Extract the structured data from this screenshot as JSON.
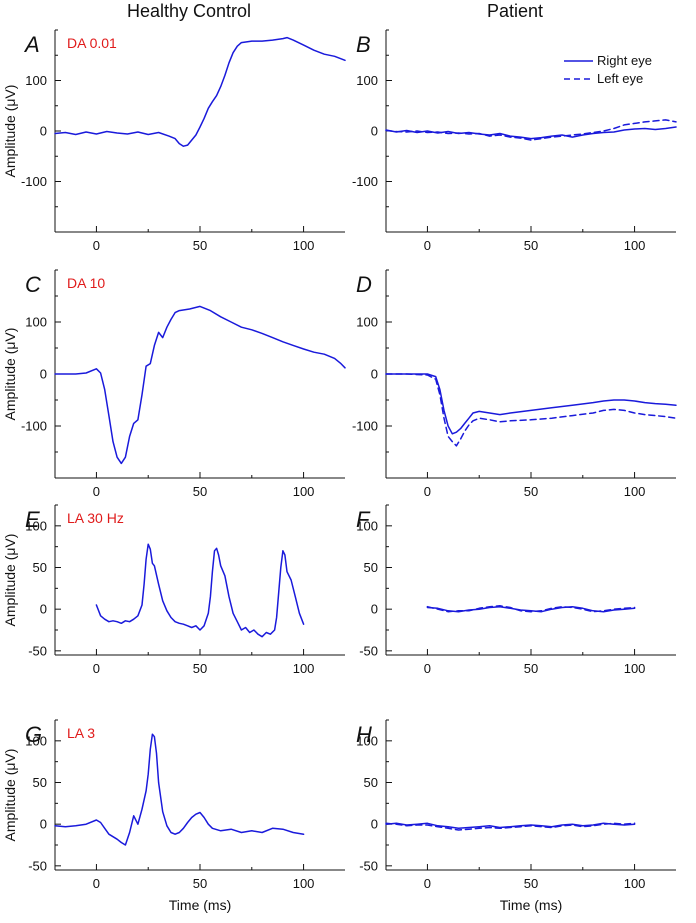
{
  "column_titles": [
    "Healthy Control",
    "Patient"
  ],
  "legend": {
    "right_eye": "Right eye",
    "left_eye": "Left eye"
  },
  "colors": {
    "trace": "#1a1adb",
    "condition_label": "#e01b1b",
    "axis": "#111111"
  },
  "chart_data": [
    {
      "id": "A",
      "type": "line",
      "condition": "DA 0.01",
      "column": "Healthy Control",
      "xlim": [
        -20,
        120
      ],
      "ylim": [
        -200,
        200
      ],
      "xticks": [
        0,
        50,
        100
      ],
      "yticks": [
        -100,
        0,
        100
      ],
      "ylabel": "Amplitude (μV)",
      "xlabel": "",
      "series": [
        {
          "name": "Healthy Control",
          "style": "solid",
          "x": [
            -20,
            -15,
            -10,
            -5,
            0,
            5,
            10,
            15,
            20,
            25,
            30,
            35,
            38,
            40,
            42,
            44,
            46,
            48,
            50,
            52,
            54,
            56,
            58,
            60,
            62,
            64,
            66,
            68,
            70,
            75,
            80,
            85,
            90,
            92,
            95,
            100,
            105,
            110,
            115,
            120
          ],
          "y": [
            -5,
            -3,
            -7,
            -2,
            -6,
            -1,
            -4,
            -6,
            -2,
            -7,
            -3,
            -10,
            -15,
            -25,
            -30,
            -28,
            -18,
            -8,
            8,
            25,
            45,
            58,
            70,
            88,
            110,
            135,
            155,
            168,
            175,
            178,
            178,
            180,
            183,
            185,
            180,
            170,
            160,
            152,
            148,
            140
          ]
        }
      ]
    },
    {
      "id": "B",
      "type": "line",
      "condition": "",
      "column": "Patient",
      "xlim": [
        -20,
        120
      ],
      "ylim": [
        -200,
        200
      ],
      "xticks": [
        0,
        50,
        100
      ],
      "yticks": [
        -100,
        0,
        100
      ],
      "ylabel": "",
      "xlabel": "",
      "series": [
        {
          "name": "Right eye",
          "style": "solid",
          "x": [
            -20,
            -15,
            -10,
            -5,
            0,
            5,
            10,
            15,
            20,
            25,
            30,
            35,
            40,
            45,
            50,
            55,
            60,
            65,
            70,
            75,
            80,
            85,
            90,
            95,
            100,
            105,
            110,
            115,
            120
          ],
          "y": [
            2,
            -2,
            1,
            -3,
            0,
            -4,
            -1,
            -5,
            -3,
            -6,
            -8,
            -5,
            -10,
            -12,
            -15,
            -13,
            -10,
            -8,
            -12,
            -8,
            -5,
            -3,
            -2,
            2,
            4,
            5,
            3,
            5,
            8
          ]
        },
        {
          "name": "Left eye",
          "style": "dashed",
          "x": [
            -20,
            -15,
            -10,
            -5,
            0,
            5,
            10,
            15,
            20,
            25,
            30,
            35,
            40,
            45,
            50,
            55,
            60,
            65,
            70,
            75,
            80,
            85,
            90,
            95,
            100,
            105,
            110,
            115,
            120
          ],
          "y": [
            1,
            -1,
            -2,
            0,
            -3,
            -2,
            -5,
            -4,
            -6,
            -5,
            -10,
            -8,
            -12,
            -14,
            -18,
            -15,
            -12,
            -10,
            -8,
            -6,
            -3,
            0,
            5,
            12,
            15,
            18,
            20,
            22,
            18
          ]
        }
      ]
    },
    {
      "id": "C",
      "type": "line",
      "condition": "DA 10",
      "column": "Healthy Control",
      "xlim": [
        -20,
        120
      ],
      "ylim": [
        -200,
        200
      ],
      "xticks": [
        0,
        50,
        100
      ],
      "yticks": [
        -100,
        0,
        100
      ],
      "ylabel": "Amplitude (μV)",
      "xlabel": "",
      "series": [
        {
          "name": "Healthy Control",
          "style": "solid",
          "x": [
            -20,
            -10,
            -5,
            0,
            2,
            4,
            6,
            8,
            10,
            12,
            14,
            16,
            18,
            20,
            22,
            24,
            26,
            28,
            30,
            32,
            34,
            36,
            38,
            40,
            45,
            50,
            55,
            60,
            65,
            70,
            75,
            80,
            85,
            90,
            95,
            100,
            105,
            110,
            115,
            118,
            120
          ],
          "y": [
            0,
            0,
            2,
            10,
            2,
            -30,
            -80,
            -130,
            -160,
            -172,
            -160,
            -120,
            -95,
            -88,
            -40,
            15,
            20,
            55,
            80,
            70,
            90,
            105,
            118,
            122,
            125,
            130,
            122,
            110,
            100,
            90,
            85,
            78,
            70,
            62,
            55,
            48,
            42,
            38,
            30,
            20,
            12
          ]
        }
      ]
    },
    {
      "id": "D",
      "type": "line",
      "condition": "",
      "column": "Patient",
      "xlim": [
        -20,
        120
      ],
      "ylim": [
        -200,
        200
      ],
      "xticks": [
        0,
        50,
        100
      ],
      "yticks": [
        -100,
        0,
        100
      ],
      "ylabel": "",
      "xlabel": "",
      "series": [
        {
          "name": "Right eye",
          "style": "solid",
          "x": [
            -20,
            -10,
            0,
            4,
            6,
            8,
            10,
            12,
            14,
            16,
            18,
            20,
            22,
            25,
            30,
            35,
            40,
            50,
            60,
            70,
            80,
            85,
            90,
            95,
            100,
            105,
            110,
            115,
            120
          ],
          "y": [
            0,
            0,
            0,
            -5,
            -30,
            -70,
            -100,
            -115,
            -112,
            -105,
            -95,
            -85,
            -75,
            -72,
            -75,
            -78,
            -75,
            -70,
            -65,
            -60,
            -55,
            -52,
            -50,
            -50,
            -52,
            -55,
            -57,
            -58,
            -60
          ]
        },
        {
          "name": "Left eye",
          "style": "dashed",
          "x": [
            -20,
            -10,
            0,
            4,
            6,
            8,
            10,
            12,
            14,
            16,
            18,
            20,
            22,
            25,
            30,
            35,
            40,
            50,
            60,
            70,
            80,
            85,
            90,
            95,
            100,
            105,
            110,
            115,
            120
          ],
          "y": [
            0,
            0,
            -2,
            -10,
            -40,
            -85,
            -120,
            -130,
            -138,
            -125,
            -110,
            -98,
            -90,
            -85,
            -88,
            -92,
            -90,
            -88,
            -85,
            -80,
            -75,
            -70,
            -68,
            -70,
            -75,
            -78,
            -80,
            -82,
            -85
          ]
        }
      ]
    },
    {
      "id": "E",
      "type": "line",
      "condition": "LA 30 Hz",
      "column": "Healthy Control",
      "xlim": [
        -20,
        120
      ],
      "ylim": [
        -55,
        125
      ],
      "xticks": [
        0,
        50,
        100
      ],
      "yticks": [
        -50,
        0,
        50,
        100
      ],
      "ylabel": "Amplitude (μV)",
      "xlabel": "",
      "series": [
        {
          "name": "Healthy Control",
          "style": "solid",
          "x": [
            0,
            2,
            4,
            6,
            8,
            10,
            12,
            14,
            16,
            18,
            20,
            22,
            23,
            24,
            25,
            26,
            27,
            28,
            30,
            32,
            34,
            36,
            38,
            40,
            42,
            44,
            46,
            48,
            50,
            52,
            54,
            55,
            56,
            57,
            58,
            59,
            60,
            62,
            64,
            66,
            68,
            70,
            72,
            74,
            76,
            78,
            80,
            82,
            84,
            86,
            87,
            88,
            89,
            90,
            91,
            92,
            94,
            96,
            98,
            100
          ],
          "y": [
            5,
            -8,
            -12,
            -15,
            -14,
            -15,
            -17,
            -14,
            -15,
            -12,
            -8,
            5,
            30,
            60,
            78,
            72,
            55,
            52,
            30,
            10,
            -2,
            -10,
            -15,
            -17,
            -18,
            -20,
            -22,
            -20,
            -25,
            -20,
            -5,
            15,
            45,
            70,
            73,
            65,
            52,
            40,
            15,
            -5,
            -15,
            -25,
            -22,
            -28,
            -25,
            -30,
            -33,
            -28,
            -30,
            -25,
            -10,
            20,
            50,
            70,
            65,
            45,
            35,
            15,
            -5,
            -18
          ]
        }
      ]
    },
    {
      "id": "F",
      "type": "line",
      "condition": "",
      "column": "Patient",
      "xlim": [
        -20,
        120
      ],
      "ylim": [
        -55,
        125
      ],
      "xticks": [
        0,
        50,
        100
      ],
      "yticks": [
        -50,
        0,
        50,
        100
      ],
      "ylabel": "",
      "xlabel": "",
      "series": [
        {
          "name": "Right eye",
          "style": "solid",
          "x": [
            0,
            5,
            10,
            15,
            20,
            25,
            30,
            35,
            40,
            45,
            50,
            55,
            60,
            65,
            70,
            75,
            80,
            85,
            90,
            95,
            100
          ],
          "y": [
            2,
            1,
            -2,
            -3,
            -1,
            0,
            2,
            3,
            1,
            -1,
            -2,
            -3,
            0,
            2,
            3,
            1,
            -2,
            -3,
            -1,
            0,
            1
          ]
        },
        {
          "name": "Left eye",
          "style": "dashed",
          "x": [
            0,
            5,
            10,
            15,
            20,
            25,
            30,
            35,
            40,
            45,
            50,
            55,
            60,
            65,
            70,
            75,
            80,
            85,
            90,
            95,
            100
          ],
          "y": [
            3,
            0,
            -3,
            -2,
            -2,
            1,
            3,
            4,
            2,
            -2,
            -3,
            -2,
            1,
            3,
            2,
            0,
            -3,
            -2,
            0,
            1,
            2
          ]
        }
      ]
    },
    {
      "id": "G",
      "type": "line",
      "condition": "LA 3",
      "column": "Healthy Control",
      "xlim": [
        -20,
        120
      ],
      "ylim": [
        -55,
        125
      ],
      "xticks": [
        0,
        50,
        100
      ],
      "yticks": [
        -50,
        0,
        50,
        100
      ],
      "ylabel": "Amplitude (μV)",
      "xlabel": "Time (ms)",
      "series": [
        {
          "name": "Healthy Control",
          "style": "solid",
          "x": [
            -20,
            -15,
            -10,
            -5,
            0,
            2,
            4,
            6,
            8,
            10,
            12,
            14,
            16,
            18,
            20,
            22,
            24,
            25,
            26,
            27,
            28,
            29,
            30,
            32,
            34,
            36,
            38,
            40,
            42,
            44,
            46,
            48,
            50,
            52,
            54,
            56,
            60,
            65,
            70,
            75,
            80,
            85,
            90,
            95,
            100
          ],
          "y": [
            -2,
            -3,
            -2,
            0,
            5,
            2,
            -5,
            -12,
            -15,
            -18,
            -22,
            -25,
            -10,
            10,
            0,
            18,
            40,
            60,
            90,
            108,
            105,
            85,
            50,
            15,
            -2,
            -10,
            -12,
            -10,
            -5,
            2,
            8,
            12,
            14,
            8,
            0,
            -5,
            -8,
            -6,
            -10,
            -8,
            -10,
            -5,
            -6,
            -10,
            -12
          ]
        }
      ]
    },
    {
      "id": "H",
      "type": "line",
      "condition": "",
      "column": "Patient",
      "xlim": [
        -20,
        120
      ],
      "ylim": [
        -55,
        125
      ],
      "xticks": [
        0,
        50,
        100
      ],
      "yticks": [
        -50,
        0,
        50,
        100
      ],
      "ylabel": "",
      "xlabel": "Time (ms)",
      "series": [
        {
          "name": "Right eye",
          "style": "solid",
          "x": [
            -20,
            -15,
            -10,
            -5,
            0,
            5,
            10,
            15,
            20,
            25,
            30,
            35,
            40,
            45,
            50,
            55,
            60,
            65,
            70,
            75,
            80,
            85,
            90,
            95,
            100
          ],
          "y": [
            0,
            1,
            -1,
            0,
            1,
            -2,
            -3,
            -5,
            -4,
            -3,
            -2,
            -4,
            -3,
            -2,
            -1,
            -2,
            -3,
            -1,
            0,
            -2,
            -1,
            1,
            0,
            -1,
            0
          ]
        },
        {
          "name": "Left eye",
          "style": "dashed",
          "x": [
            -20,
            -15,
            -10,
            -5,
            0,
            5,
            10,
            15,
            20,
            25,
            30,
            35,
            40,
            45,
            50,
            55,
            60,
            65,
            70,
            75,
            80,
            85,
            90,
            95,
            100
          ],
          "y": [
            1,
            0,
            -2,
            -1,
            -1,
            -3,
            -5,
            -7,
            -6,
            -5,
            -4,
            -5,
            -4,
            -3,
            -2,
            -3,
            -4,
            -2,
            -1,
            -3,
            -2,
            0,
            1,
            0,
            1
          ]
        }
      ]
    }
  ]
}
